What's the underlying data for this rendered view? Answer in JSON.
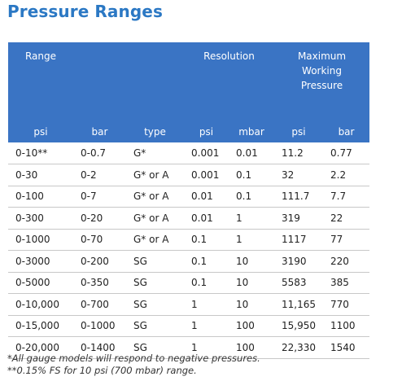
{
  "title": "Pressure Ranges",
  "header": {
    "range": "Range",
    "resolution": "Resolution",
    "max_working": [
      "Maximum",
      "Working",
      "Pressure"
    ],
    "sub": [
      "psi",
      "bar",
      "type",
      "psi",
      "mbar",
      "psi",
      "bar"
    ]
  },
  "rows": [
    [
      "0-10**",
      "0-0.7",
      "G*",
      "0.001",
      "0.01",
      "11.2",
      "0.77"
    ],
    [
      "0-30",
      "0-2",
      "G* or A",
      "0.001",
      "0.1",
      "32",
      "2.2"
    ],
    [
      "0-100",
      "0-7",
      "G* or A",
      "0.01",
      "0.1",
      "111.7",
      "7.7"
    ],
    [
      "0-300",
      "0-20",
      "G* or A",
      "0.01",
      "1",
      "319",
      "22"
    ],
    [
      "0-1000",
      "0-70",
      "G* or A",
      "0.1",
      "1",
      "1117",
      "77"
    ],
    [
      "0-3000",
      "0-200",
      "SG",
      "0.1",
      "10",
      "3190",
      "220"
    ],
    [
      "0-5000",
      "0-350",
      "SG",
      "0.1",
      "10",
      "5583",
      "385"
    ],
    [
      "0-10,000",
      "0-700",
      "SG",
      "1",
      "10",
      "11,165",
      "770"
    ],
    [
      "0-15,000",
      "0-1000",
      "SG",
      "1",
      "100",
      "15,950",
      "1100"
    ],
    [
      "0-20,000",
      "0-1400",
      "SG",
      "1",
      "100",
      "22,330",
      "1540"
    ]
  ],
  "footnotes": [
    "*All gauge models will respond to negative pressures.",
    "**0.15% FS for 10 psi (700 mbar) range."
  ],
  "colors": {
    "title": "#2b78c4",
    "header_bg": "#3a74c4",
    "header_text": "#ffffff"
  }
}
